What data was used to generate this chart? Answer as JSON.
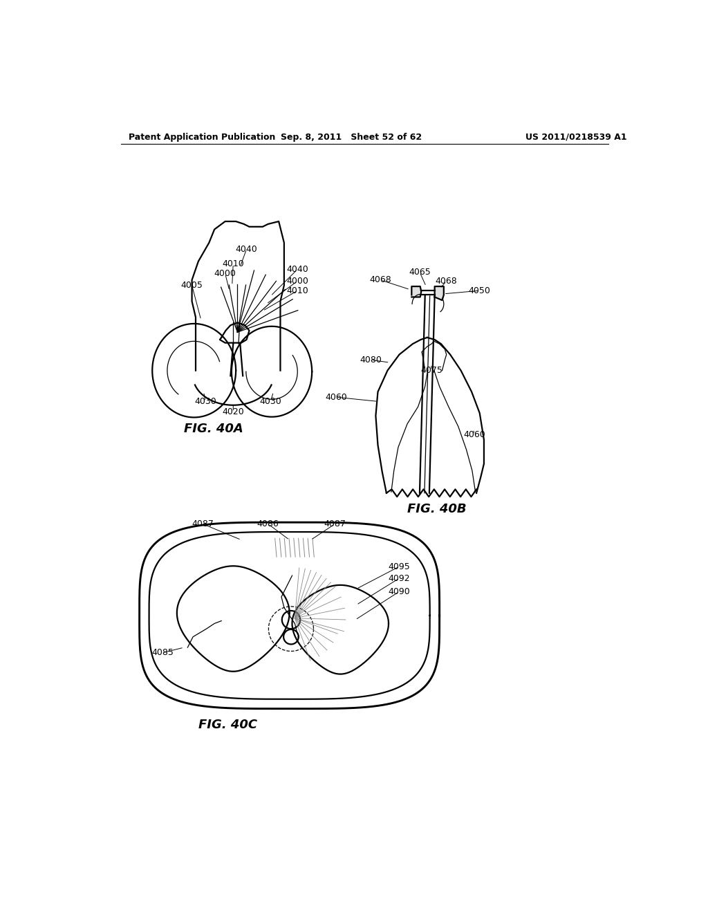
{
  "bg_color": "#ffffff",
  "header_left": "Patent Application Publication",
  "header_mid": "Sep. 8, 2011   Sheet 52 of 62",
  "header_right": "US 2011/0218539 A1",
  "fig40a_caption": "FIG. 40A",
  "fig40b_caption": "FIG. 40B",
  "fig40c_caption": "FIG. 40C",
  "lw_main": 1.6,
  "lw_thin": 0.9,
  "fs_label": 9,
  "fs_caption": 13,
  "fs_header": 9
}
